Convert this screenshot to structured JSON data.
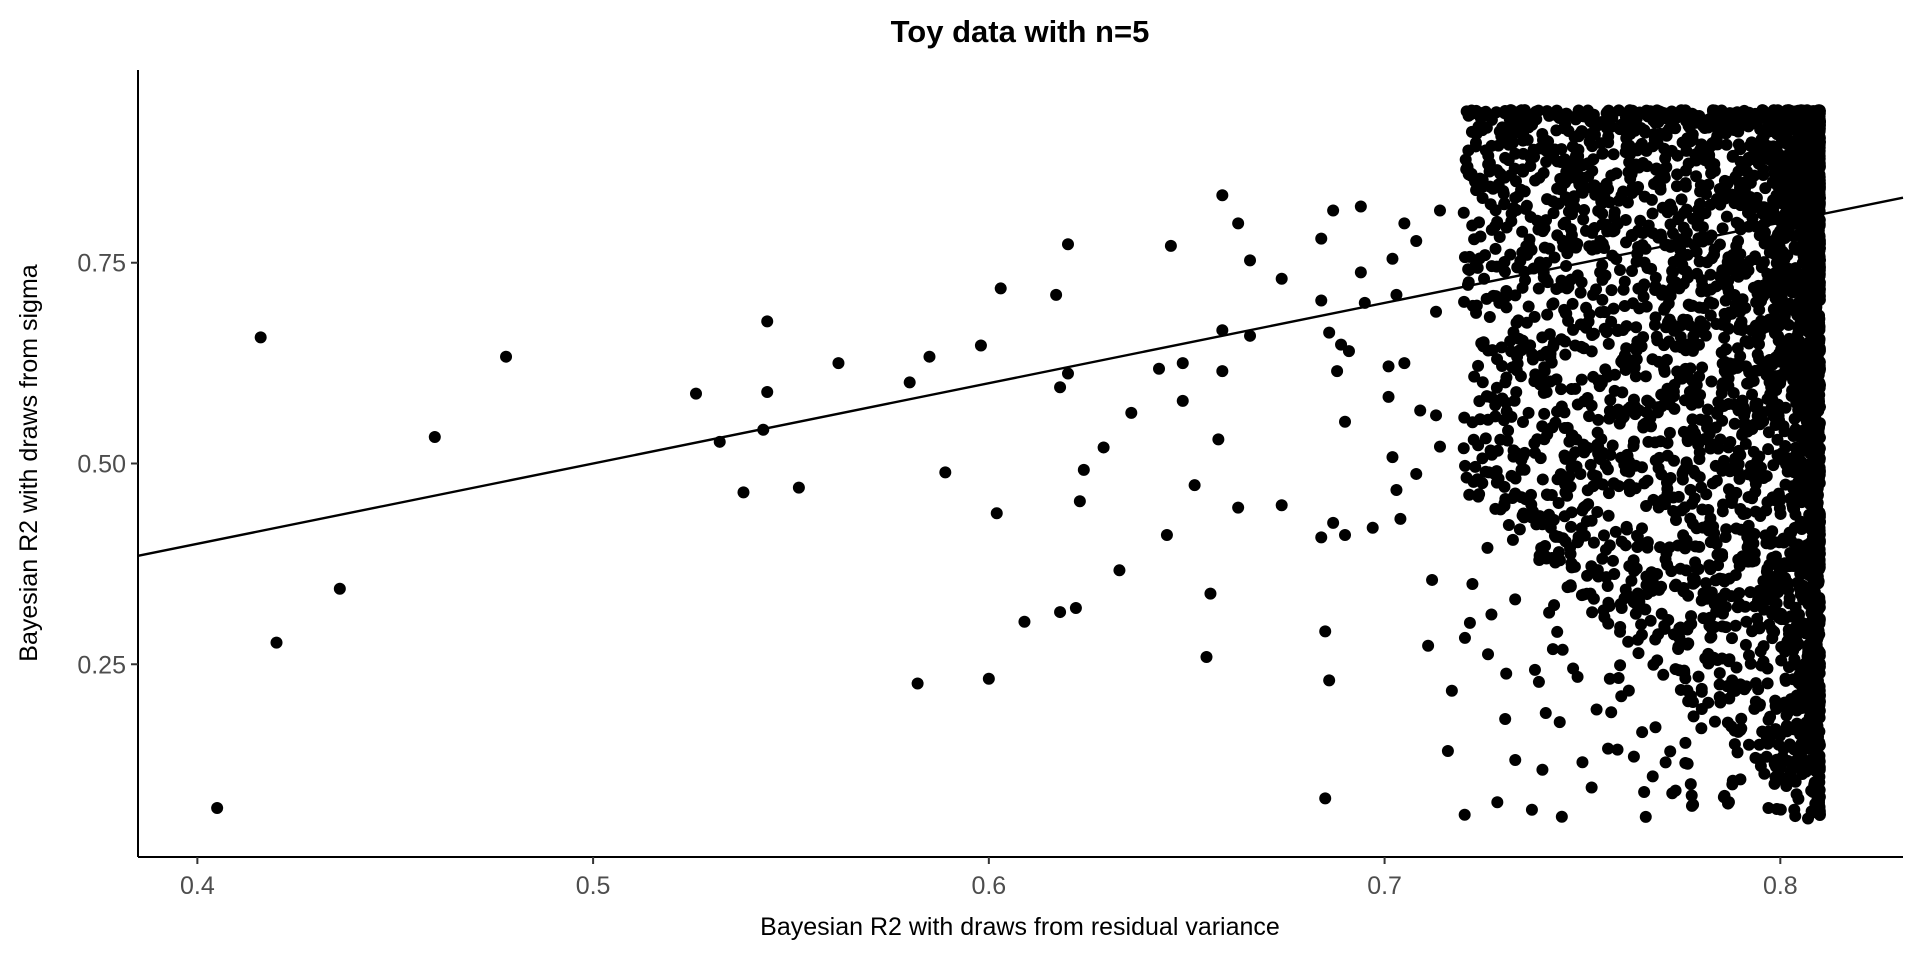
{
  "chart_data": {
    "type": "scatter",
    "title": "Toy data with n=5",
    "xlabel": "Bayesian R2 with draws from residual variance",
    "ylabel": "Bayesian R2 with draws from sigma",
    "xlim": [
      0.385,
      0.831
    ],
    "ylim": [
      0.01,
      0.99
    ],
    "x_ticks": [
      0.4,
      0.5,
      0.6,
      0.7,
      0.8
    ],
    "x_tick_labels": [
      "0.4",
      "0.5",
      "0.6",
      "0.7",
      "0.8"
    ],
    "y_ticks": [
      0.25,
      0.5,
      0.75
    ],
    "y_tick_labels": [
      "0.25",
      "0.50",
      "0.75"
    ],
    "grid": false,
    "point_color": "#000000",
    "reference_line": {
      "slope": 1,
      "intercept": 0,
      "color": "#000000"
    },
    "points": [
      [
        0.405,
        0.071
      ],
      [
        0.416,
        0.657
      ],
      [
        0.42,
        0.277
      ],
      [
        0.436,
        0.344
      ],
      [
        0.46,
        0.533
      ],
      [
        0.478,
        0.633
      ],
      [
        0.526,
        0.587
      ],
      [
        0.532,
        0.527
      ],
      [
        0.538,
        0.464
      ],
      [
        0.543,
        0.542
      ],
      [
        0.544,
        0.677
      ],
      [
        0.544,
        0.589
      ],
      [
        0.552,
        0.47
      ],
      [
        0.562,
        0.625
      ],
      [
        0.58,
        0.601
      ],
      [
        0.582,
        0.226
      ],
      [
        0.585,
        0.633
      ],
      [
        0.589,
        0.489
      ],
      [
        0.598,
        0.647
      ],
      [
        0.6,
        0.232
      ],
      [
        0.602,
        0.438
      ],
      [
        0.603,
        0.718
      ],
      [
        0.609,
        0.303
      ],
      [
        0.617,
        0.71
      ],
      [
        0.618,
        0.595
      ],
      [
        0.62,
        0.612
      ],
      [
        0.618,
        0.315
      ],
      [
        0.62,
        0.773
      ],
      [
        0.622,
        0.32
      ],
      [
        0.623,
        0.453
      ],
      [
        0.624,
        0.492
      ],
      [
        0.629,
        0.52
      ],
      [
        0.633,
        0.367
      ],
      [
        0.636,
        0.563
      ],
      [
        0.643,
        0.618
      ],
      [
        0.645,
        0.411
      ],
      [
        0.646,
        0.771
      ],
      [
        0.649,
        0.578
      ],
      [
        0.649,
        0.625
      ],
      [
        0.652,
        0.473
      ],
      [
        0.655,
        0.259
      ],
      [
        0.656,
        0.338
      ],
      [
        0.658,
        0.53
      ],
      [
        0.659,
        0.834
      ],
      [
        0.659,
        0.666
      ],
      [
        0.659,
        0.615
      ],
      [
        0.663,
        0.445
      ],
      [
        0.663,
        0.799
      ],
      [
        0.666,
        0.659
      ],
      [
        0.666,
        0.753
      ],
      [
        0.674,
        0.73
      ],
      [
        0.674,
        0.448
      ],
      [
        0.684,
        0.78
      ],
      [
        0.684,
        0.408
      ],
      [
        0.684,
        0.703
      ],
      [
        0.685,
        0.291
      ],
      [
        0.686,
        0.663
      ],
      [
        0.686,
        0.23
      ],
      [
        0.685,
        0.083
      ],
      [
        0.687,
        0.815
      ],
      [
        0.687,
        0.426
      ],
      [
        0.688,
        0.615
      ],
      [
        0.689,
        0.648
      ],
      [
        0.69,
        0.552
      ],
      [
        0.69,
        0.411
      ],
      [
        0.691,
        0.64
      ],
      [
        0.694,
        0.82
      ],
      [
        0.694,
        0.738
      ],
      [
        0.695,
        0.7
      ],
      [
        0.697,
        0.42
      ],
      [
        0.701,
        0.583
      ],
      [
        0.701,
        0.621
      ],
      [
        0.702,
        0.755
      ],
      [
        0.702,
        0.508
      ],
      [
        0.703,
        0.467
      ],
      [
        0.704,
        0.431
      ],
      [
        0.703,
        0.71
      ],
      [
        0.705,
        0.799
      ],
      [
        0.705,
        0.625
      ],
      [
        0.708,
        0.777
      ],
      [
        0.708,
        0.487
      ],
      [
        0.709,
        0.566
      ],
      [
        0.711,
        0.273
      ],
      [
        0.712,
        0.355
      ],
      [
        0.713,
        0.689
      ],
      [
        0.713,
        0.56
      ],
      [
        0.714,
        0.521
      ],
      [
        0.714,
        0.815
      ],
      [
        0.716,
        0.142
      ],
      [
        0.717,
        0.217
      ],
      [
        0.72,
        0.519
      ],
      [
        0.725,
        0.845
      ],
      [
        0.726,
        0.395
      ],
      [
        0.727,
        0.312
      ],
      [
        0.729,
        0.7
      ],
      [
        0.735,
        0.91
      ],
      [
        0.737,
        0.461
      ],
      [
        0.738,
        0.243
      ],
      [
        0.739,
        0.228
      ],
      [
        0.742,
        0.42
      ],
      [
        0.745,
        0.268
      ],
      [
        0.75,
        0.128
      ],
      [
        0.763,
        0.135
      ],
      [
        0.766,
        0.06
      ],
      [
        0.776,
        0.127
      ],
      [
        0.788,
        0.105
      ],
      [
        0.797,
        0.071
      ],
      [
        0.8,
        0.125
      ],
      [
        0.807,
        0.058
      ],
      [
        0.809,
        0.095
      ]
    ],
    "dense_region": {
      "x_range": [
        0.72,
        0.81
      ],
      "y_range": [
        0.06,
        0.94
      ]
    }
  }
}
